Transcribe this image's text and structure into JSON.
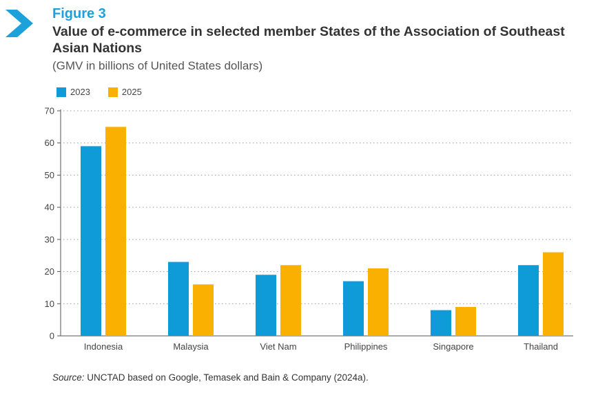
{
  "figure": {
    "label": "Figure 3",
    "title": "Value of e-commerce in selected member States of the Association of Southeast Asian Nations",
    "subtitle": "(GMV in billions of United States dollars)",
    "source_prefix": "Source:",
    "source_text": " UNCTAD based on Google, Temasek and Bain & Company (2024a).",
    "icon": "chevron-right-icon",
    "accent_color": "#1da1db"
  },
  "chart_data": {
    "type": "bar",
    "title": "Value of e-commerce in selected member States of the Association of Southeast Asian Nations",
    "subtitle": "(GMV in billions of United States dollars)",
    "categories": [
      "Indonesia",
      "Malaysia",
      "Viet Nam",
      "Philippines",
      "Singapore",
      "Thailand"
    ],
    "series": [
      {
        "name": "2023",
        "color": "#0f9ad8",
        "values": [
          59,
          23,
          19,
          17,
          8,
          22
        ]
      },
      {
        "name": "2025",
        "color": "#f9b000",
        "values": [
          65,
          16,
          22,
          21,
          9,
          26
        ]
      }
    ],
    "ylim": [
      0,
      70
    ],
    "yticks": [
      0,
      10,
      20,
      30,
      40,
      50,
      60,
      70
    ],
    "grid": true,
    "legend": "top-left"
  }
}
